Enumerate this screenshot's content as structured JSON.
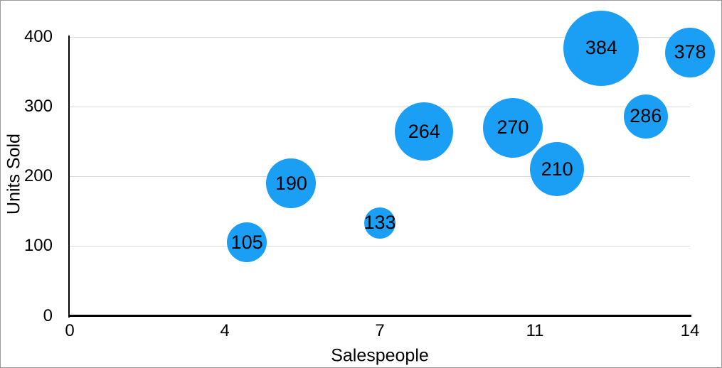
{
  "chart_data": {
    "type": "scatter",
    "subtype": "bubble",
    "title": "",
    "xlabel": "Salespeople",
    "ylabel": "Units Sold",
    "xlim": [
      0,
      14
    ],
    "ylim": [
      0,
      400
    ],
    "grid": "horizontal",
    "legend": "none",
    "x_ticks": [
      {
        "pos": 0,
        "label": "0"
      },
      {
        "pos": 3.5,
        "label": "4"
      },
      {
        "pos": 7,
        "label": "7"
      },
      {
        "pos": 10.5,
        "label": "11"
      },
      {
        "pos": 14,
        "label": "14"
      }
    ],
    "y_ticks": [
      {
        "pos": 0,
        "label": "0"
      },
      {
        "pos": 100,
        "label": "100"
      },
      {
        "pos": 200,
        "label": "200"
      },
      {
        "pos": 300,
        "label": "300"
      },
      {
        "pos": 400,
        "label": "400"
      }
    ],
    "points": [
      {
        "x": 4,
        "y": 105,
        "label": "105",
        "radius_px": 28
      },
      {
        "x": 5,
        "y": 190,
        "label": "190",
        "radius_px": 35
      },
      {
        "x": 7,
        "y": 133,
        "label": "133",
        "radius_px": 22
      },
      {
        "x": 8,
        "y": 264,
        "label": "264",
        "radius_px": 41
      },
      {
        "x": 10,
        "y": 270,
        "label": "270",
        "radius_px": 42
      },
      {
        "x": 11,
        "y": 210,
        "label": "210",
        "radius_px": 38
      },
      {
        "x": 12,
        "y": 384,
        "label": "384",
        "radius_px": 53
      },
      {
        "x": 13,
        "y": 286,
        "label": "286",
        "radius_px": 31
      },
      {
        "x": 14,
        "y": 378,
        "label": "378",
        "radius_px": 35
      }
    ],
    "colors": {
      "bubble_fill": "#1B9FF5",
      "bubble_label": "#000000",
      "axis_line": "#000000",
      "grid_line": "#D9D9D9",
      "tick_label": "#000000",
      "frame_border": "#999999",
      "background": "#FFFFFF"
    }
  }
}
